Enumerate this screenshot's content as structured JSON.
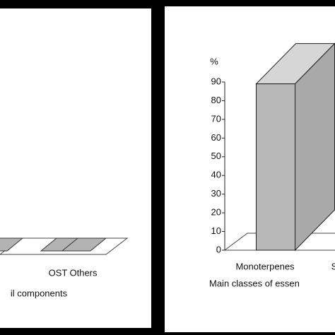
{
  "chart_data": [
    {
      "type": "bar3d",
      "categories": [
        null,
        "OST",
        "Others"
      ],
      "values": [
        1,
        1,
        1
      ],
      "xlabel": "il components",
      "color": "#b3b3b3"
    },
    {
      "type": "bar3d",
      "ylabel": "%",
      "categories": [
        "Monoterpenes",
        "S"
      ],
      "values": [
        89,
        null
      ],
      "xlabel": "Main classes of essen",
      "ylim": [
        0,
        90
      ],
      "yticks": [
        0,
        10,
        20,
        30,
        40,
        50,
        60,
        70,
        80,
        90
      ],
      "color": "#b8b8b8"
    }
  ]
}
